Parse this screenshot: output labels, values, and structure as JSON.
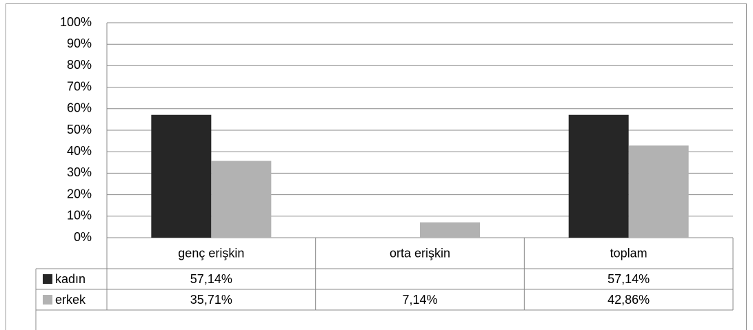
{
  "chart_data": {
    "type": "bar",
    "categories": [
      "genç erişkin",
      "orta erişkin",
      "toplam"
    ],
    "series": [
      {
        "name": "kadın",
        "color": "#262626",
        "values": [
          57.14,
          null,
          57.14
        ],
        "value_labels": [
          "57,14%",
          null,
          "57,14%"
        ]
      },
      {
        "name": "erkek",
        "color": "#b2b2b2",
        "values": [
          35.71,
          7.14,
          42.86
        ],
        "value_labels": [
          "35,71%",
          "7,14%",
          "42,86%"
        ]
      }
    ],
    "ylim": [
      0,
      100
    ],
    "yticks": [
      {
        "value": 0,
        "label": "0%"
      },
      {
        "value": 10,
        "label": "10%"
      },
      {
        "value": 20,
        "label": "20%"
      },
      {
        "value": 30,
        "label": "30%"
      },
      {
        "value": 40,
        "label": "40%"
      },
      {
        "value": 50,
        "label": "50%"
      },
      {
        "value": 60,
        "label": "60%"
      },
      {
        "value": 70,
        "label": "70%"
      },
      {
        "value": 80,
        "label": "80%"
      },
      {
        "value": 90,
        "label": "90%"
      },
      {
        "value": 100,
        "label": "100%"
      }
    ],
    "grid": true,
    "legend": "table"
  }
}
